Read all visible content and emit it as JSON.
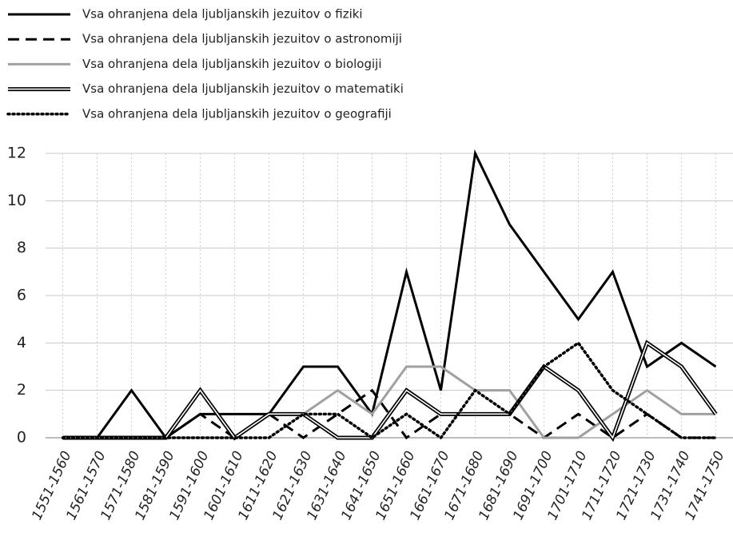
{
  "chart_data": {
    "type": "line",
    "categories": [
      "1551-1560",
      "1561-1570",
      "1571-1580",
      "1581-1590",
      "1591-1600",
      "1601-1610",
      "1611-1620",
      "1621-1630",
      "1631-1640",
      "1641-1650",
      "1651-1660",
      "1661-1670",
      "1671-1680",
      "1681-1690",
      "1691-1700",
      "1701-1710",
      "1711-1720",
      "1721-1730",
      "1731-1740",
      "1741-1750"
    ],
    "series": [
      {
        "name": "Vsa ohranjena dela ljubljanskih jezuitov o fiziki",
        "color": "#000000",
        "dash": "solid",
        "values": [
          0,
          0,
          2,
          0,
          1,
          1,
          1,
          3,
          3,
          1,
          7,
          2,
          12,
          9,
          7,
          5,
          7,
          3,
          4,
          3
        ]
      },
      {
        "name": "Vsa ohranjena dela ljubljanskih jezuitov o astronomiji",
        "color": "#000000",
        "dash": "dashed",
        "values": [
          0,
          0,
          0,
          0,
          1,
          0,
          1,
          0,
          1,
          2,
          0,
          1,
          1,
          1,
          0,
          1,
          0,
          1,
          0,
          0
        ]
      },
      {
        "name": "Vsa ohranjena dela ljubljanskih jezuitov o biologiji",
        "color": "#a0a0a0",
        "dash": "solid",
        "values": [
          0,
          0,
          0,
          0,
          0,
          0,
          1,
          1,
          2,
          1,
          3,
          3,
          2,
          2,
          0,
          0,
          1,
          2,
          1,
          1
        ]
      },
      {
        "name": "Vsa ohranjena dela ljubljanskih jezuitov o matematiki",
        "color": "#000000",
        "dash": "double",
        "values": [
          0,
          0,
          0,
          0,
          2,
          0,
          1,
          1,
          0,
          0,
          2,
          1,
          1,
          1,
          3,
          2,
          0,
          4,
          3,
          1
        ]
      },
      {
        "name": "Vsa ohranjena dela ljubljanskih jezuitov o geografiji",
        "color": "#000000",
        "dash": "dotted",
        "values": [
          0,
          0,
          0,
          0,
          0,
          0,
          0,
          1,
          1,
          0,
          1,
          0,
          2,
          1,
          3,
          4,
          2,
          1,
          0,
          0
        ]
      }
    ],
    "ylim": [
      0,
      12
    ],
    "yticks": [
      0,
      2,
      4,
      6,
      8,
      10,
      12
    ],
    "grid": true,
    "legend": "top-left"
  }
}
